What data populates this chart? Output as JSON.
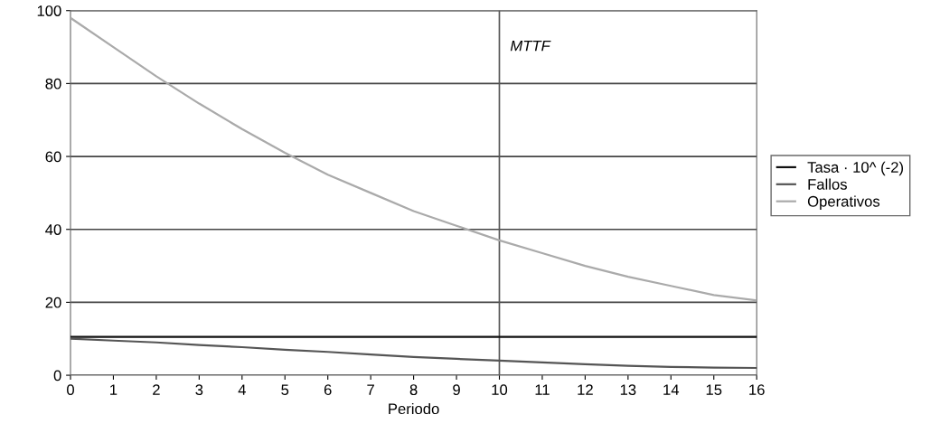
{
  "chart_data": {
    "type": "line",
    "xlabel": "Periodo",
    "x": [
      0,
      1,
      2,
      3,
      4,
      5,
      6,
      7,
      8,
      9,
      10,
      11,
      12,
      13,
      14,
      15,
      16
    ],
    "series": [
      {
        "name": "Tasa · 10^ (-2)",
        "color": "#111111",
        "values": [
          10.5,
          10.5,
          10.5,
          10.5,
          10.5,
          10.5,
          10.5,
          10.5,
          10.5,
          10.5,
          10.5,
          10.5,
          10.5,
          10.5,
          10.5,
          10.5,
          10.5
        ]
      },
      {
        "name": "Fallos",
        "color": "#555555",
        "values": [
          10,
          9.5,
          9,
          8.3,
          7.7,
          7,
          6.4,
          5.7,
          5,
          4.5,
          4,
          3.5,
          3,
          2.6,
          2.3,
          2.1,
          2
        ]
      },
      {
        "name": "Operativos",
        "color": "#aaaaaa",
        "values": [
          98,
          90,
          82,
          74.5,
          67.5,
          61,
          55,
          50,
          45,
          41,
          37,
          33.5,
          30,
          27,
          24.5,
          22,
          20.5
        ]
      }
    ],
    "ref_lines": [
      {
        "axis": "x",
        "value": 10,
        "label": "MTTF",
        "color": "#555555"
      }
    ],
    "xlim": [
      0,
      16
    ],
    "xticks": [
      0,
      1,
      2,
      3,
      4,
      5,
      6,
      7,
      8,
      9,
      10,
      11,
      12,
      13,
      14,
      15,
      16
    ],
    "ylim": [
      0,
      100
    ],
    "yticks": [
      0,
      20,
      40,
      60,
      80,
      100
    ],
    "grid": "y",
    "legend": "right",
    "marker": "none",
    "line_style": "solid"
  }
}
